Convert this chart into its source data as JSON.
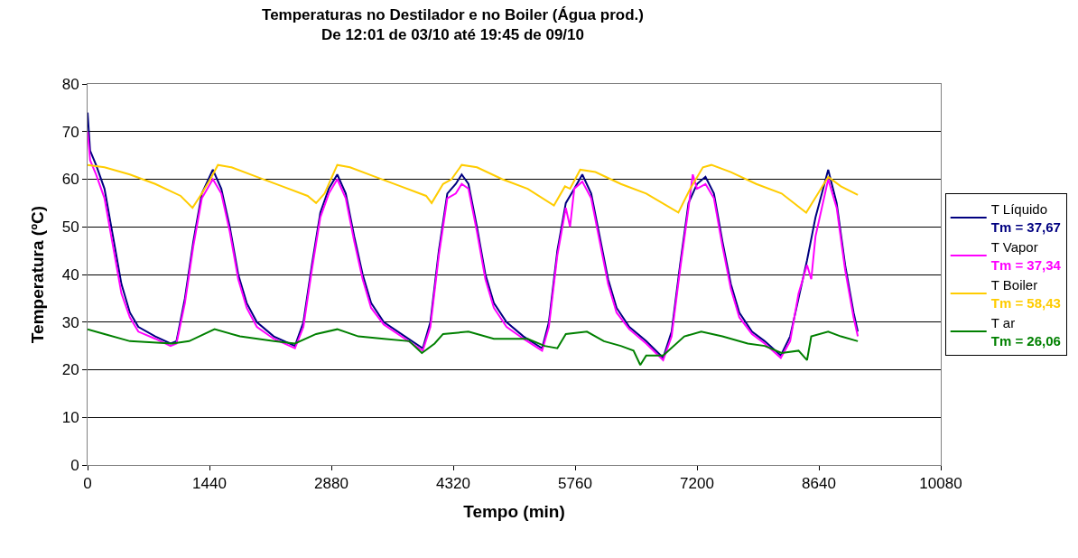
{
  "chart_data": {
    "type": "line",
    "title": "Temperaturas no Destilador e no Boiler (Água prod.)",
    "subtitle": "De 12:01 de 03/10 até 19:45 de 09/10",
    "xlabel": "Tempo (min)",
    "ylabel": "Temperatura (ºC)",
    "xlim": [
      0,
      10080
    ],
    "xticks": [
      0,
      1440,
      2880,
      4320,
      5760,
      7200,
      8640,
      10080
    ],
    "ylim": [
      0,
      80
    ],
    "yticks": [
      0,
      10,
      20,
      30,
      40,
      50,
      60,
      70,
      80
    ],
    "grid": "y",
    "legend": "right",
    "marker": "none",
    "line_style": "solid",
    "annotations": [
      "Tm = 37,67",
      "Tm = 37,34",
      "Tm = 58,43",
      "Tm = 26,06"
    ],
    "series": [
      {
        "name": "T Líquido",
        "color": "#000080",
        "x": [
          0,
          30,
          100,
          200,
          300,
          400,
          500,
          600,
          800,
          980,
          1050,
          1150,
          1250,
          1350,
          1480,
          1580,
          1680,
          1780,
          1880,
          2000,
          2200,
          2450,
          2550,
          2650,
          2750,
          2850,
          2950,
          3050,
          3150,
          3250,
          3350,
          3500,
          3750,
          3960,
          4050,
          4150,
          4250,
          4350,
          4420,
          4500,
          4600,
          4700,
          4800,
          4950,
          5150,
          5370,
          5450,
          5550,
          5650,
          5750,
          5845,
          5950,
          6050,
          6150,
          6250,
          6400,
          6600,
          6800,
          6900,
          7000,
          7100,
          7200,
          7300,
          7400,
          7500,
          7600,
          7700,
          7850,
          8000,
          8190,
          8300,
          8400,
          8500,
          8600,
          8750,
          8850,
          8950,
          9050,
          9100
        ],
        "values": [
          74,
          66,
          63,
          58,
          48,
          38,
          32,
          29,
          27,
          25.5,
          26,
          35,
          47,
          57,
          62,
          58,
          50,
          40,
          34,
          30,
          27,
          25,
          30,
          42,
          53,
          58,
          61,
          57,
          48,
          40,
          34,
          30,
          27,
          24.5,
          30,
          45,
          57,
          59,
          61,
          59,
          50,
          40,
          34,
          30,
          27,
          24.5,
          30,
          45,
          55,
          58,
          61,
          57,
          48,
          39,
          33,
          29,
          26,
          22.5,
          28,
          42,
          55,
          59,
          60.5,
          57,
          47,
          38,
          32,
          28,
          26,
          23,
          27,
          35,
          43,
          52,
          62,
          55,
          42,
          32,
          28
        ]
      },
      {
        "name": "T Vapor",
        "color": "#ff00ff",
        "x": [
          0,
          30,
          100,
          200,
          300,
          400,
          500,
          600,
          800,
          980,
          1050,
          1150,
          1250,
          1350,
          1480,
          1580,
          1680,
          1780,
          1880,
          2000,
          2200,
          2450,
          2550,
          2650,
          2750,
          2850,
          2950,
          3050,
          3150,
          3250,
          3350,
          3500,
          3750,
          3960,
          4050,
          4150,
          4250,
          4350,
          4420,
          4500,
          4600,
          4700,
          4800,
          4950,
          5150,
          5370,
          5450,
          5550,
          5650,
          5700,
          5750,
          5845,
          5950,
          6050,
          6150,
          6250,
          6400,
          6600,
          6800,
          6900,
          7000,
          7100,
          7150,
          7200,
          7300,
          7400,
          7500,
          7600,
          7700,
          7850,
          8000,
          8190,
          8300,
          8400,
          8500,
          8550,
          8600,
          8750,
          8850,
          8950,
          9050,
          9100
        ],
        "values": [
          70,
          64,
          61,
          56,
          46,
          36,
          31,
          28,
          26.5,
          25,
          25.5,
          34,
          46,
          56,
          60,
          57,
          49,
          39,
          33,
          29,
          26.5,
          24.5,
          29,
          41,
          52,
          57,
          60,
          56,
          47,
          39,
          33,
          29.5,
          26.5,
          24,
          29,
          44,
          56,
          57,
          59,
          58,
          49,
          39,
          33,
          29,
          26.5,
          24,
          29,
          44,
          54,
          50,
          58,
          59.5,
          56,
          47,
          38,
          32,
          28.5,
          25.5,
          22,
          27,
          41,
          54,
          61,
          58,
          59,
          56,
          46,
          37,
          31,
          27.5,
          25.5,
          22.5,
          26,
          36,
          42,
          39,
          48,
          60,
          54,
          41,
          31,
          27
        ]
      },
      {
        "name": "T Boiler",
        "color": "#ffcc00",
        "x": [
          0,
          200,
          500,
          800,
          1100,
          1240,
          1350,
          1450,
          1540,
          1700,
          2000,
          2300,
          2600,
          2700,
          2800,
          2950,
          3100,
          3400,
          3700,
          4000,
          4065,
          4200,
          4300,
          4420,
          4600,
          4900,
          5200,
          5510,
          5640,
          5700,
          5820,
          6000,
          6300,
          6600,
          6980,
          7120,
          7270,
          7370,
          7600,
          7900,
          8200,
          8490,
          8630,
          8750,
          8900,
          9100
        ],
        "values": [
          63,
          62.5,
          61,
          59,
          56.5,
          54,
          57,
          60,
          63,
          62.5,
          60.5,
          58.5,
          56.5,
          55,
          57,
          63,
          62.5,
          60.5,
          58.5,
          56.5,
          55,
          59,
          60,
          63,
          62.5,
          60,
          58,
          54.5,
          58.5,
          58,
          62,
          61.5,
          59,
          57,
          53,
          58,
          62.5,
          63,
          61.5,
          59,
          57,
          53,
          57,
          60.5,
          58.5,
          56.7
        ]
      },
      {
        "name": "T ar",
        "color": "#008000",
        "x": [
          0,
          200,
          500,
          1000,
          1200,
          1500,
          1800,
          2200,
          2450,
          2700,
          2950,
          3200,
          3500,
          3800,
          3950,
          4100,
          4200,
          4500,
          4800,
          5200,
          5400,
          5550,
          5650,
          5900,
          6100,
          6300,
          6450,
          6530,
          6600,
          6800,
          7050,
          7250,
          7500,
          7800,
          8000,
          8200,
          8400,
          8500,
          8550,
          8750,
          8900,
          9100
        ],
        "values": [
          28.5,
          27.5,
          26,
          25.5,
          26,
          28.5,
          27,
          26,
          25.5,
          27.5,
          28.5,
          27,
          26.5,
          26,
          23.5,
          25.5,
          27.5,
          28,
          26.5,
          26.5,
          25,
          24.5,
          27.5,
          28,
          26,
          25,
          24,
          21,
          23,
          23,
          27,
          28,
          27,
          25.5,
          25,
          23.5,
          24,
          22,
          27,
          28,
          27,
          26
        ]
      }
    ]
  }
}
